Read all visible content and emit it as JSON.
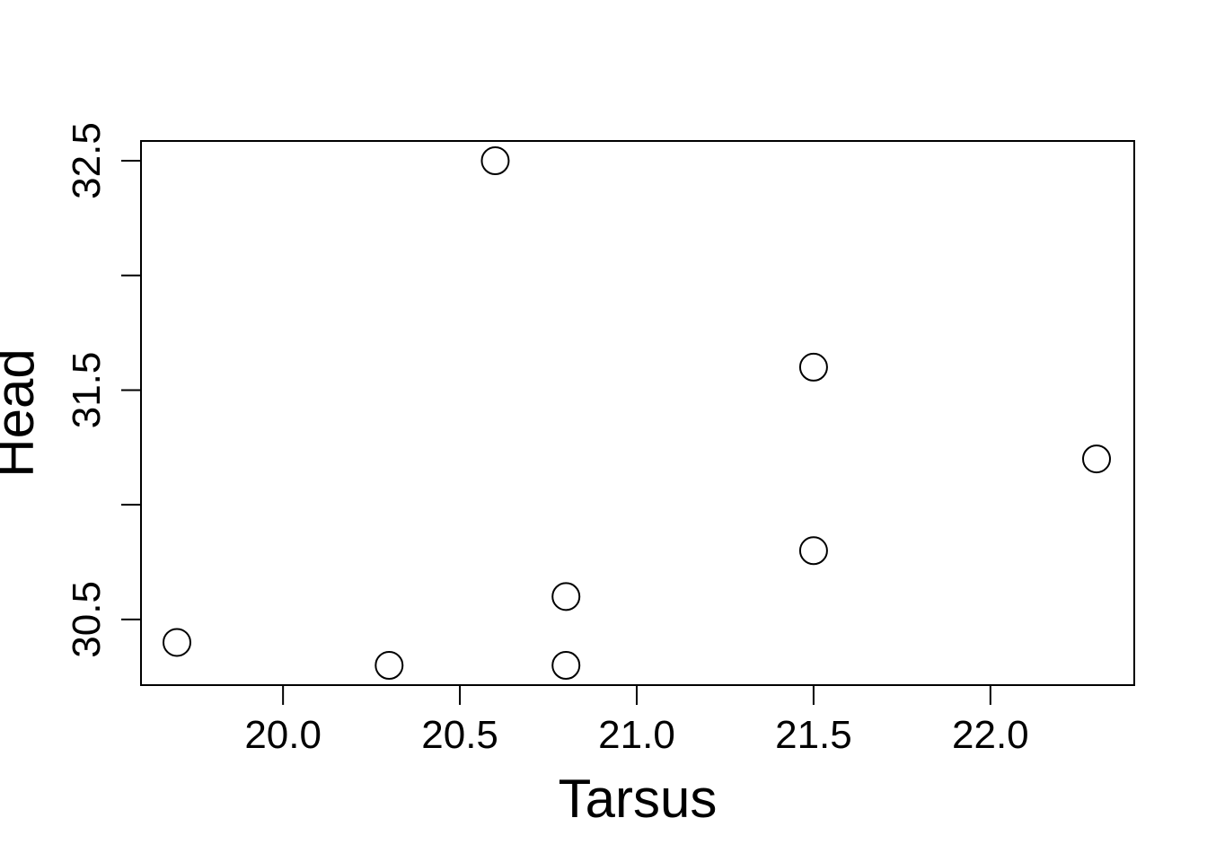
{
  "chart_data": {
    "type": "scatter",
    "title": "",
    "xlabel": "Tarsus",
    "ylabel": "Head",
    "xlim": [
      19.7,
      22.3
    ],
    "ylim": [
      30.3,
      32.5
    ],
    "x_ticks": [
      "20.0",
      "20.5",
      "21.0",
      "21.5",
      "22.0"
    ],
    "x_tick_values": [
      20.0,
      20.5,
      21.0,
      21.5,
      22.0
    ],
    "y_ticks": [
      "30.5",
      "31.5",
      "32.5"
    ],
    "y_tick_values": [
      30.5,
      31.5,
      32.5
    ],
    "y_minor_tick_values": [
      31.0,
      32.0
    ],
    "grid": false,
    "marker": "open-circle",
    "color": "#000000",
    "points": [
      {
        "x": 19.7,
        "y": 30.4
      },
      {
        "x": 20.3,
        "y": 30.3
      },
      {
        "x": 20.6,
        "y": 32.5
      },
      {
        "x": 20.8,
        "y": 30.6
      },
      {
        "x": 20.8,
        "y": 30.3
      },
      {
        "x": 21.5,
        "y": 31.6
      },
      {
        "x": 21.5,
        "y": 30.8
      },
      {
        "x": 22.3,
        "y": 31.2
      }
    ]
  }
}
